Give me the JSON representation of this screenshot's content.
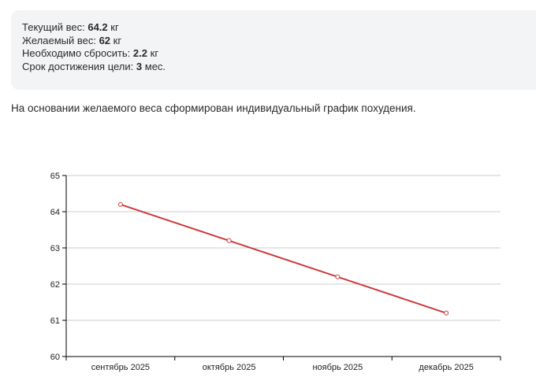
{
  "summary": {
    "current_weight": {
      "label": "Текущий вес:",
      "value": "64.2",
      "unit": "кг"
    },
    "target_weight": {
      "label": "Желаемый вес:",
      "value": "62",
      "unit": "кг"
    },
    "to_lose": {
      "label": "Необходимо сбросить:",
      "value": "2.2",
      "unit": "кг"
    },
    "deadline": {
      "label": "Срок достижения цели:",
      "value": "3",
      "unit": "мес."
    }
  },
  "description": "На основании желаемого веса сформирован индивидуальный график похудения.",
  "chart_data": {
    "type": "line",
    "categories": [
      "сентябрь 2025",
      "октябрь 2025",
      "ноябрь 2025",
      "декабрь 2025"
    ],
    "series": [
      {
        "values": [
          64.2,
          63.2,
          62.2,
          61.2
        ]
      }
    ],
    "ylim": [
      60,
      65
    ],
    "y_ticks": [
      "60",
      "61",
      "62",
      "63",
      "64",
      "65"
    ],
    "grid": true,
    "colors": {
      "line": "#cc3b3b",
      "grid": "#cccccc",
      "axis": "#000000"
    }
  }
}
